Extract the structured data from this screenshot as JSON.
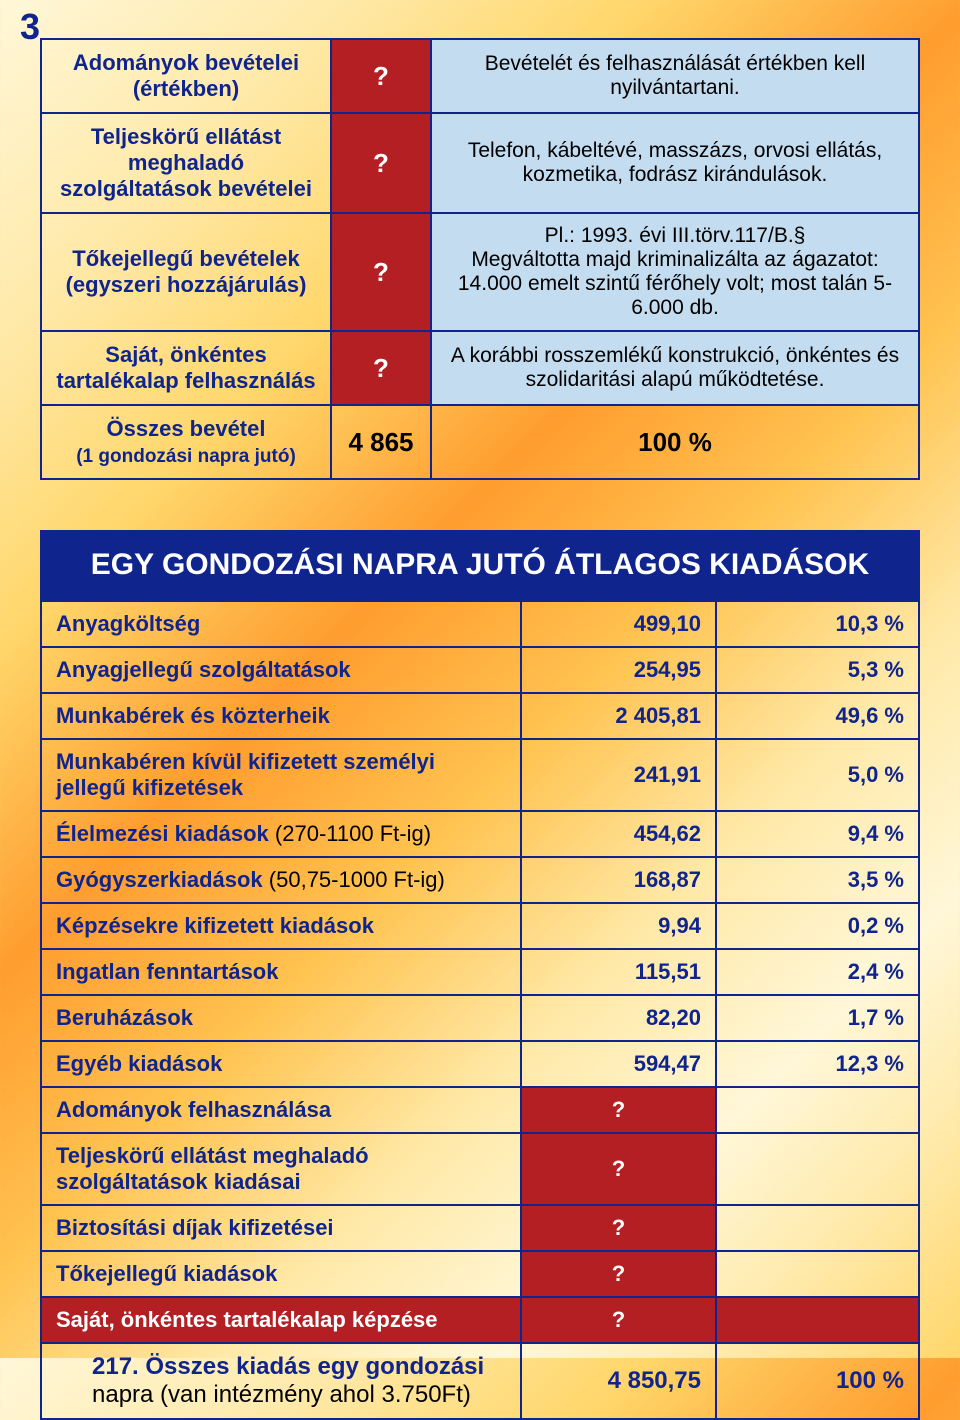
{
  "page_number": "3",
  "colors": {
    "primary_blue": "#0f258d",
    "red_cell": "#b41f23",
    "lightblue_cell": "#c3dcef",
    "text_black": "#000000",
    "white": "#ffffff"
  },
  "table1": {
    "rows": [
      {
        "label": "Adományok bevételei (értékben)",
        "col2": "?",
        "col2_type": "q",
        "desc": "Bevételét és felhasználását értékben kell nyilvántartani."
      },
      {
        "label": "Teljeskörű ellátást meghaladó szolgáltatások bevételei",
        "col2": "?",
        "col2_type": "q",
        "desc": "Telefon, kábeltévé, masszázs, orvosi ellátás, kozmetika, fodrász kirándulások."
      },
      {
        "label": "Tőkejellegű bevételek (egyszeri hozzájárulás)",
        "col2": "?",
        "col2_type": "q",
        "desc_line1": "Pl.: 1993. évi III.törv.117/B.§",
        "desc_line2": "Megváltotta majd kriminalizálta az ágazatot: 14.000 emelt szintű férőhely volt; most talán 5-6.000 db."
      },
      {
        "label": "Saját, önkéntes tartalékalap felhasználás",
        "col2": "?",
        "col2_type": "q",
        "desc": "A korábbi rosszemlékű konstrukció, önkéntes és szolidaritási alapú működtetése."
      }
    ],
    "total": {
      "label_line1": "Összes bevétel",
      "label_line2": "(1 gondozási napra jutó)",
      "value": "4 865",
      "percent": "100 %"
    }
  },
  "table2": {
    "header": "EGY GONDOZÁSI NAPRA JUTÓ ÁTLAGOS KIADÁSOK",
    "rows": [
      {
        "label": "Anyagköltség",
        "value": "499,10",
        "pct": "10,3 %"
      },
      {
        "label": "Anyagjellegű szolgáltatások",
        "value": "254,95",
        "pct": "5,3 %"
      },
      {
        "label": "Munkabérek és közterheik",
        "value": "2 405,81",
        "pct": "49,6 %"
      },
      {
        "label": "Munkabéren kívül kifizetett személyi jellegű kifizetések",
        "value": "241,91",
        "pct": "5,0 %"
      },
      {
        "label_main": "Élelmezési kiadások",
        "label_note": " (270-1100 Ft-ig)",
        "value": "454,62",
        "pct": "9,4 %"
      },
      {
        "label_main": "Gyógyszerkiadások",
        "label_note": " (50,75-1000 Ft-ig)",
        "value": "168,87",
        "pct": "3,5 %"
      },
      {
        "label": "Képzésekre kifizetett kiadások",
        "value": "9,94",
        "pct": "0,2 %"
      },
      {
        "label": "Ingatlan fenntartások",
        "value": "115,51",
        "pct": "2,4 %"
      },
      {
        "label": "Beruházások",
        "value": "82,20",
        "pct": "1,7 %"
      },
      {
        "label": "Egyéb kiadások",
        "value": "594,47",
        "pct": "12,3 %"
      },
      {
        "label": "Adományok felhasználása",
        "value": "?",
        "value_type": "red",
        "pct": ""
      },
      {
        "label": "Teljeskörű ellátást meghaladó szolgáltatások kiadásai",
        "value": "?",
        "value_type": "red",
        "pct": ""
      },
      {
        "label": "Biztosítási díjak kifizetései",
        "value": "?",
        "value_type": "red",
        "pct": ""
      },
      {
        "label": "Tőkejellegű kiadások",
        "value": "?",
        "value_type": "red",
        "pct": ""
      },
      {
        "label": "Saját, önkéntes tartalékalap képzése",
        "value": "?",
        "row_type": "red",
        "pct": ""
      }
    ],
    "total": {
      "label_main": "217. Összes kiadás egy gondozási",
      "label_sub": "napra (van intézmény ahol 3.750Ft)",
      "value": "4 850,75",
      "pct": "100 %"
    }
  }
}
